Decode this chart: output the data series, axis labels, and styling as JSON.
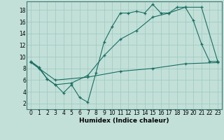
{
  "xlabel": "Humidex (Indice chaleur)",
  "bg_color": "#c2e0d8",
  "grid_color": "#9cc8bf",
  "line_color": "#1a6e64",
  "xlim": [
    -0.5,
    23.5
  ],
  "ylim": [
    1,
    19.5
  ],
  "xticks": [
    0,
    1,
    2,
    3,
    4,
    5,
    6,
    7,
    8,
    9,
    10,
    11,
    12,
    13,
    14,
    15,
    16,
    17,
    18,
    19,
    20,
    21,
    22,
    23
  ],
  "yticks": [
    2,
    4,
    6,
    8,
    10,
    12,
    14,
    16,
    18
  ],
  "line1_x": [
    0,
    1,
    2,
    3,
    4,
    5,
    6,
    7,
    8,
    9,
    10,
    11,
    12,
    13,
    14,
    15,
    16,
    17,
    18,
    19,
    20,
    21,
    22,
    23
  ],
  "line1_y": [
    9.2,
    8.0,
    6.2,
    5.2,
    3.8,
    5.2,
    3.0,
    2.2,
    7.2,
    12.5,
    15.2,
    17.5,
    17.5,
    17.8,
    17.5,
    19.0,
    17.5,
    17.5,
    18.5,
    18.5,
    16.2,
    12.2,
    9.2,
    9.2
  ],
  "line2_x": [
    0,
    1,
    2,
    3,
    5,
    7,
    9,
    11,
    13,
    15,
    17,
    19,
    21,
    23
  ],
  "line2_y": [
    9.2,
    8.2,
    6.2,
    5.2,
    5.5,
    6.8,
    10.2,
    13.0,
    14.5,
    16.8,
    17.5,
    18.5,
    18.5,
    9.2
  ],
  "line3_x": [
    0,
    3,
    7,
    11,
    15,
    19,
    23
  ],
  "line3_y": [
    9.0,
    6.0,
    6.5,
    7.5,
    8.0,
    8.8,
    9.0
  ],
  "tick_fontsize": 5.5,
  "xlabel_fontsize": 6.5
}
